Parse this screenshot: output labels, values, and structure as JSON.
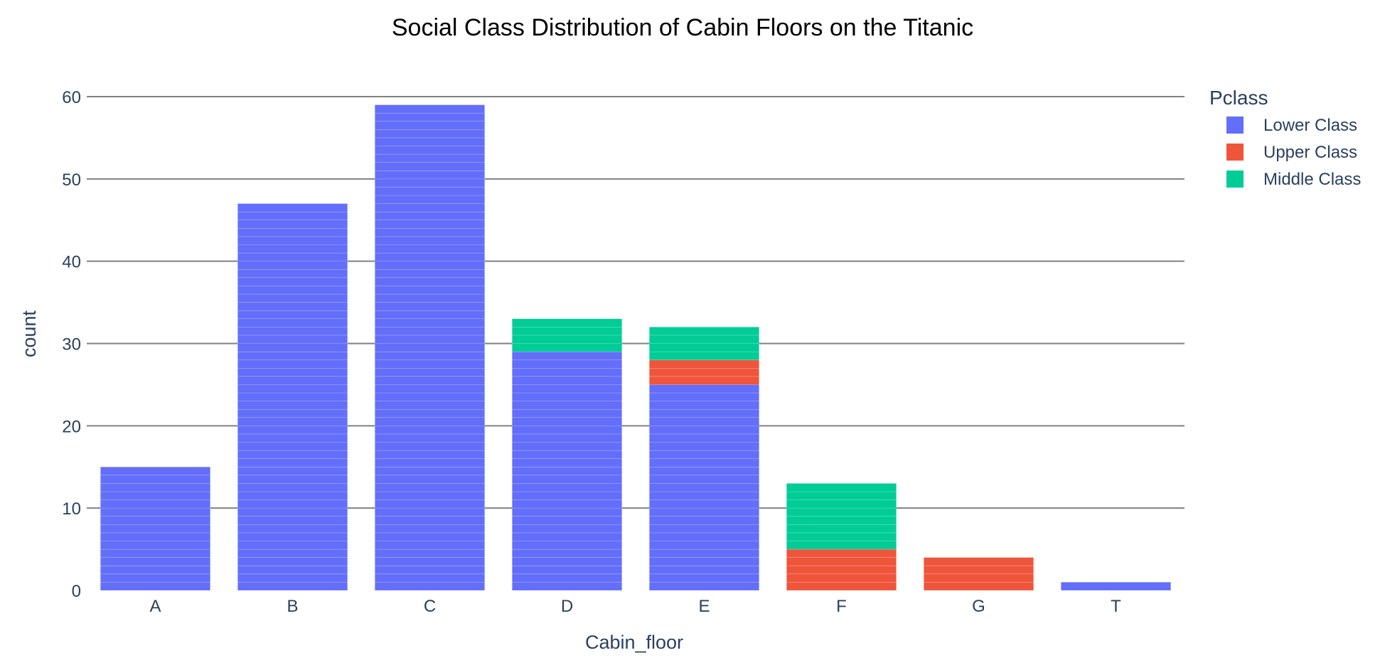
{
  "chart_data": {
    "type": "bar",
    "barmode": "stack",
    "title": "Social Class Distribution of Cabin Floors on the Titanic",
    "xlabel": "Cabin_floor",
    "ylabel": "count",
    "categories": [
      "A",
      "B",
      "C",
      "D",
      "E",
      "F",
      "G",
      "T"
    ],
    "ylim": [
      0,
      60
    ],
    "yticks": [
      0,
      10,
      20,
      30,
      40,
      50,
      60
    ],
    "grid": true,
    "legend": {
      "title": "Pclass",
      "placement": "top-right"
    },
    "series": [
      {
        "name": "Lower Class",
        "color": "#636efa",
        "values": [
          15,
          47,
          59,
          29,
          25,
          0,
          0,
          1
        ]
      },
      {
        "name": "Upper Class",
        "color": "#ef553b",
        "values": [
          0,
          0,
          0,
          0,
          3,
          5,
          4,
          0
        ]
      },
      {
        "name": "Middle Class",
        "color": "#00cc96",
        "values": [
          0,
          0,
          0,
          4,
          4,
          8,
          0,
          0
        ]
      }
    ]
  }
}
